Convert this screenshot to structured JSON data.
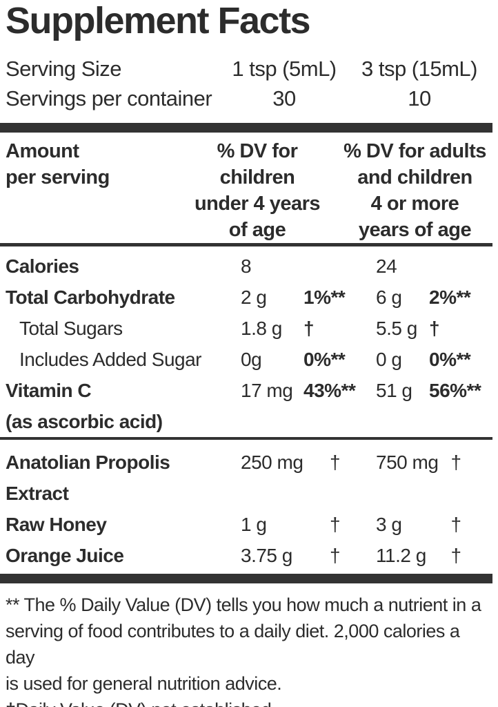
{
  "title": "Supplement Facts",
  "serving": {
    "size_label": "Serving Size",
    "size_col1": "1 tsp (5mL)",
    "size_col2": "3 tsp (15mL)",
    "count_label": "Servings per container",
    "count_col1": "30",
    "count_col2": "10"
  },
  "header": {
    "amount_line1": "Amount",
    "amount_line2": "per serving",
    "col1_lines": [
      "% DV for",
      "children",
      "under 4 years",
      "of age"
    ],
    "col2_lines": [
      "% DV for adults",
      "and children",
      "4 or more",
      "years of age"
    ]
  },
  "rows": [
    {
      "name": "Calories",
      "amount1": "8",
      "dv1": "",
      "amount2": "24",
      "dv2": ""
    },
    {
      "name": "Total Carbohydrate",
      "amount1": "2 g",
      "dv1": "1%**",
      "amount2": "6 g",
      "dv2": "2%**"
    },
    {
      "name": "Total Sugars",
      "amount1": "1.8 g",
      "dv1": "†",
      "amount2": "5.5 g",
      "dv2": "†"
    },
    {
      "name": "Includes Added Sugar",
      "amount1": "0g",
      "dv1": "0%**",
      "amount2": "0 g",
      "dv2": "0%**"
    },
    {
      "name": "Vitamin C",
      "name2": "(as ascorbic acid)",
      "amount1": "17 mg",
      "dv1": "43%**",
      "amount2": "51 g",
      "dv2": "56%**"
    },
    {
      "name": "Anatolian Propolis",
      "name2": "Extract",
      "amount1": "250 mg",
      "dv1": "†",
      "amount2": "750 mg",
      "dv2": "†"
    },
    {
      "name": "Raw Honey",
      "amount1": "1 g",
      "dv1": "†",
      "amount2": "3 g",
      "dv2": "†"
    },
    {
      "name": "Orange Juice",
      "amount1": "3.75 g",
      "dv1": "†",
      "amount2": "11.2 g",
      "dv2": "†"
    }
  ],
  "footnotes": {
    "dv_lines": [
      "** The % Daily Value (DV) tells you how much a nutrient in a",
      "serving of food contributes to a daily diet. 2,000 calories a day",
      "is used for general nutrition advice."
    ],
    "dagger": "†Daily Value (DV) not established."
  },
  "colors": {
    "text": "#2c2c2c",
    "rule": "#333333",
    "background": "#ffffff"
  }
}
